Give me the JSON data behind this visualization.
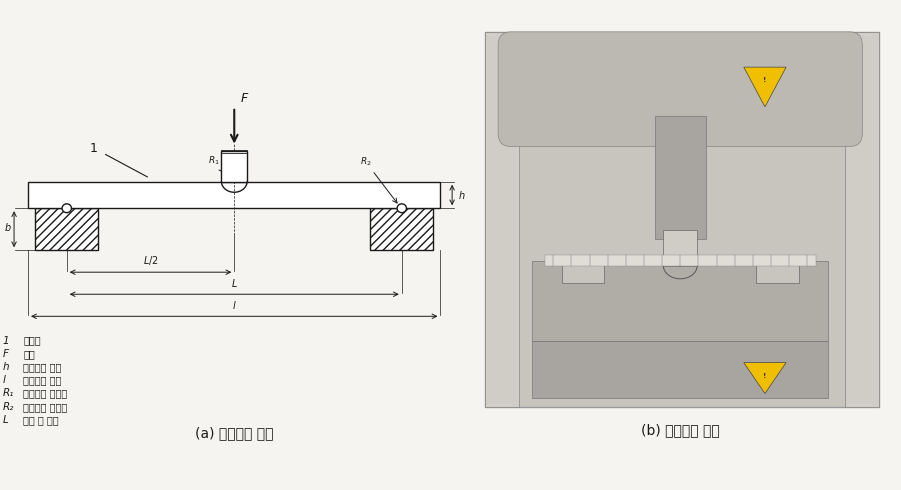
{
  "title_a": "(a) 굴곡강도 시편",
  "title_b": "(b) 굴곡강도 시험",
  "legend_items": [
    [
      "1",
      "시험편"
    ],
    [
      "F",
      "하중"
    ],
    [
      "h",
      "시험편의 두께"
    ],
    [
      "l",
      "시험편의 길이"
    ],
    [
      "R₁",
      "가압봉의 반지름"
    ],
    [
      "R₂",
      "지지대의 반지름"
    ],
    [
      "L",
      "지점 간 거리"
    ]
  ],
  "bg_color": "#f5f4f0",
  "diagram_color": "#1a1a1a"
}
